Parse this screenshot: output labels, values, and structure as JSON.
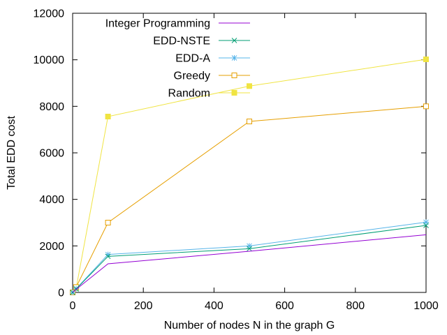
{
  "chart_data": {
    "type": "line",
    "title": "",
    "xlabel": "Number of nodes N in the graph G",
    "ylabel": "Total EDD cost",
    "xlim": [
      0,
      1000
    ],
    "ylim": [
      0,
      12000
    ],
    "xticks": [
      0,
      200,
      400,
      600,
      800,
      1000
    ],
    "yticks": [
      0,
      2000,
      4000,
      6000,
      8000,
      10000,
      12000
    ],
    "grid": false,
    "legend_position": "top-left",
    "x": [
      0,
      10,
      100,
      500,
      1000
    ],
    "series": [
      {
        "name": "Integer Programming",
        "color": "#9400d3",
        "marker": "none",
        "values": [
          0,
          130,
          1230,
          1770,
          2480
        ]
      },
      {
        "name": "EDD-NSTE",
        "color": "#009e73",
        "marker": "x",
        "values": [
          0,
          150,
          1550,
          1880,
          2880
        ]
      },
      {
        "name": "EDD-A",
        "color": "#56b4e9",
        "marker": "star",
        "values": [
          0,
          160,
          1630,
          2000,
          3020
        ]
      },
      {
        "name": "Greedy",
        "color": "#e69f00",
        "marker": "open-square",
        "values": [
          0,
          230,
          3000,
          7350,
          8000
        ]
      },
      {
        "name": "Random",
        "color": "#f0e442",
        "marker": "filled-square",
        "values": [
          0,
          190,
          7560,
          8870,
          10020
        ]
      }
    ]
  }
}
